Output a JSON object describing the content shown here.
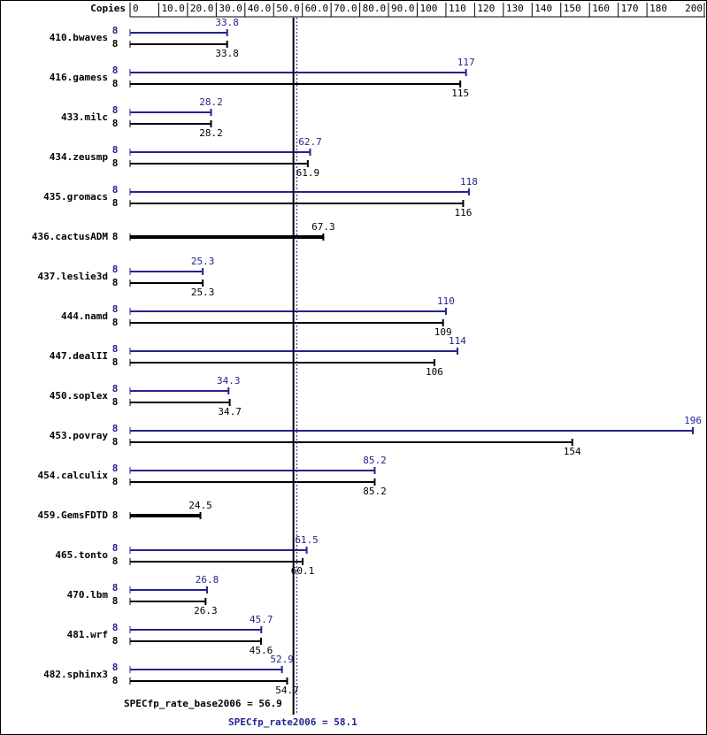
{
  "chart_data": {
    "type": "bar",
    "orientation": "horizontal",
    "copies_header": "Copies",
    "categories": [
      "410.bwaves",
      "416.gamess",
      "433.milc",
      "434.zeusmp",
      "435.gromacs",
      "436.cactusADM",
      "437.leslie3d",
      "444.namd",
      "447.dealII",
      "450.soplex",
      "453.povray",
      "454.calculix",
      "459.GemsFDTD",
      "465.tonto",
      "470.lbm",
      "481.wrf",
      "482.sphinx3"
    ],
    "series": [
      {
        "color": "#23238e",
        "values": [
          33.8,
          117,
          28.2,
          62.7,
          118,
          null,
          25.3,
          110,
          114,
          34.3,
          196,
          85.2,
          null,
          61.5,
          26.8,
          45.7,
          52.9
        ],
        "copies": [
          8,
          8,
          8,
          8,
          8,
          null,
          8,
          8,
          8,
          8,
          8,
          8,
          null,
          8,
          8,
          8,
          8
        ]
      },
      {
        "color": "#000000",
        "values": [
          33.8,
          115,
          28.2,
          61.9,
          116,
          67.3,
          25.3,
          109,
          106,
          34.7,
          154,
          85.2,
          24.5,
          60.1,
          26.3,
          45.6,
          54.7
        ],
        "copies": [
          8,
          8,
          8,
          8,
          8,
          8,
          8,
          8,
          8,
          8,
          8,
          8,
          8,
          8,
          8,
          8,
          8
        ]
      }
    ],
    "xlim": [
      0,
      200
    ],
    "xticks": [
      0,
      {
        "value": 10,
        "label": "10.0"
      },
      {
        "value": 20,
        "label": "20.0"
      },
      {
        "value": 30,
        "label": "30.0"
      },
      {
        "value": 40,
        "label": "40.0"
      },
      {
        "value": 50,
        "label": "50.0"
      },
      {
        "value": 60,
        "label": "60.0"
      },
      {
        "value": 70,
        "label": "70.0"
      },
      {
        "value": 80,
        "label": "80.0"
      },
      {
        "value": 90,
        "label": "90.0"
      },
      100,
      110,
      120,
      130,
      140,
      150,
      160,
      170,
      180,
      200
    ],
    "base_metric": {
      "label": "SPECfp_rate_base2006 = 56.9",
      "value": 56.9,
      "color": "#000000"
    },
    "peak_metric": {
      "label": "SPECfp_rate2006 = 58.1",
      "value": 58.1,
      "color": "#23238e"
    }
  }
}
